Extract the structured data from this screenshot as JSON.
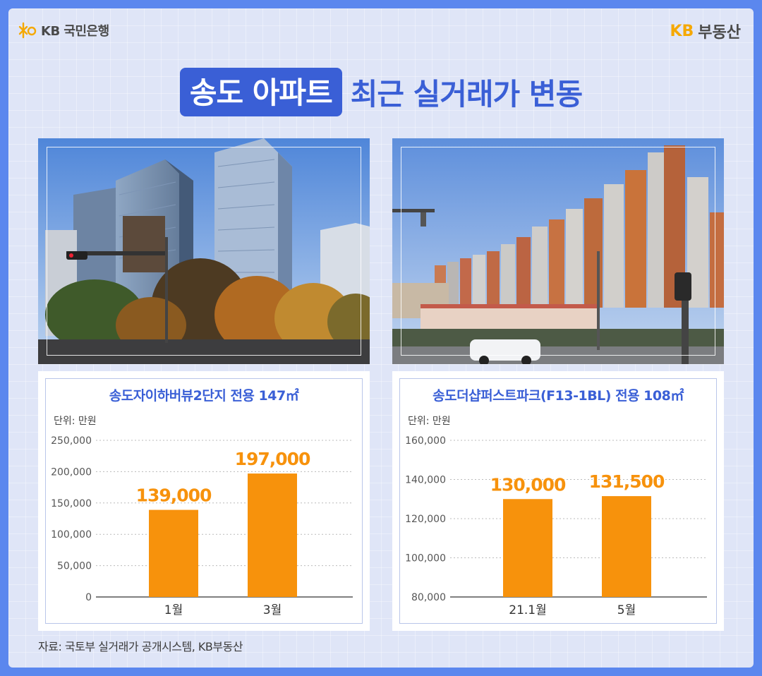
{
  "branding": {
    "left_logo_text": "KB 국민은행",
    "right_logo_kb": "KB",
    "right_logo_text": "부동산",
    "kb_color": "#f5a800"
  },
  "title": {
    "highlight": "송도 아파트",
    "rest": "최근 실거래가 변동",
    "color": "#3a5fd6"
  },
  "source": "자료: 국토부 실거래가 공개시스템, KB부동산",
  "chart_data": [
    {
      "type": "bar",
      "title": "송도자이하버뷰2단지 전용 147㎡",
      "unit_label": "단위: 만원",
      "categories": [
        "1월",
        "3월"
      ],
      "values": [
        139000,
        197000
      ],
      "data_labels": [
        "139,000",
        "197,000"
      ],
      "yticks": [
        "250,000",
        "200,000",
        "150,000",
        "100,000",
        "50,000",
        "0"
      ],
      "ylim": [
        0,
        250000
      ],
      "bar_color": "#f7920c",
      "grid": true
    },
    {
      "type": "bar",
      "title": "송도더샵퍼스트파크(F13-1BL) 전용 108㎡",
      "unit_label": "단위: 만원",
      "categories": [
        "21.1월",
        "5월"
      ],
      "values": [
        130000,
        131500
      ],
      "data_labels": [
        "130,000",
        "131,500"
      ],
      "yticks": [
        "160,000",
        "140,000",
        "120,000",
        "100,000",
        "80,000"
      ],
      "ylim": [
        80000,
        160000
      ],
      "bar_color": "#f7920c",
      "grid": true
    }
  ]
}
